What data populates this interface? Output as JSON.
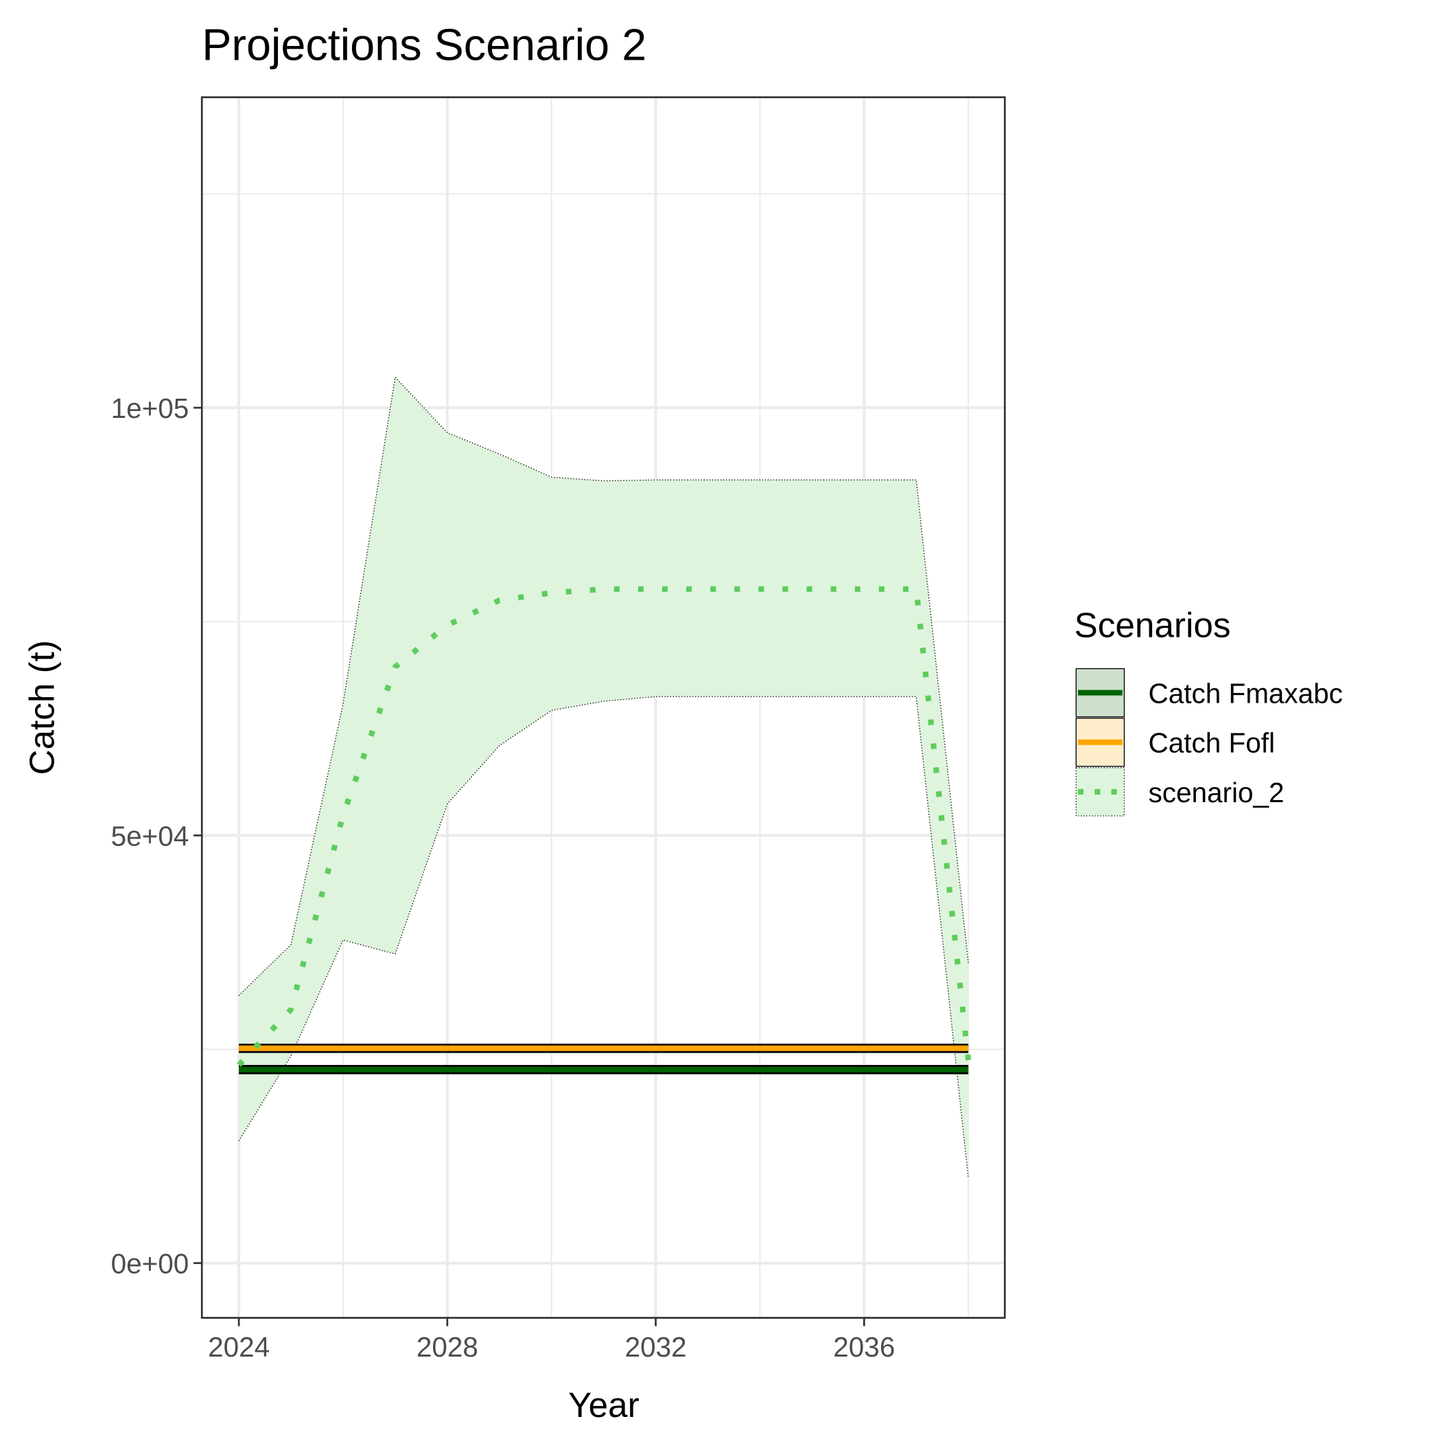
{
  "chart_data": {
    "type": "line",
    "title": "Projections Scenario 2",
    "x_label": "Year",
    "y_label": "Catch (t)",
    "legend_title": "Scenarios",
    "x": [
      2024,
      2025,
      2026,
      2027,
      2028,
      2029,
      2030,
      2031,
      2032,
      2033,
      2034,
      2035,
      2036,
      2037,
      2038
    ],
    "series": [
      {
        "name": "Catch Fmaxabc",
        "color": "#006400",
        "fill": "#cce0cc",
        "values": [
          22620,
          22620,
          22620,
          22620,
          22620,
          22620,
          22620,
          22620,
          22620,
          22620,
          22620,
          22620,
          22620,
          22620,
          22620
        ]
      },
      {
        "name": "Catch Fofl",
        "color": "#ffa500",
        "fill": "#ffedcc",
        "values": [
          25110,
          25110,
          25110,
          25110,
          25110,
          25110,
          25110,
          25110,
          25110,
          25110,
          25110,
          25110,
          25110,
          25110,
          25110
        ]
      },
      {
        "name": "scenario_2",
        "color": "#5dcc5d",
        "fill": "#dff4dc",
        "dashed": true,
        "values": [
          23160,
          29650,
          52380,
          69700,
          74570,
          77490,
          78360,
          78790,
          78790,
          78790,
          78790,
          78790,
          78790,
          78790,
          23700
        ],
        "upper": [
          31280,
          37230,
          65370,
          103570,
          97080,
          94590,
          91880,
          91450,
          91560,
          91560,
          91560,
          91560,
          91560,
          91560,
          35070
        ],
        "lower": [
          14290,
          24240,
          37770,
          36150,
          53680,
          60500,
          64610,
          65690,
          66230,
          66230,
          66230,
          66230,
          66230,
          66230,
          9960
        ]
      }
    ],
    "xlim": [
      2023.29,
      2038.7
    ],
    "ylim": [
      -6400,
      136300
    ],
    "xticks": [
      2024,
      2028,
      2032,
      2036
    ],
    "yticks": [
      {
        "value": 0,
        "label": "0e+00"
      },
      {
        "value": 50000,
        "label": "5e+04"
      },
      {
        "value": 100000,
        "label": "1e+05"
      }
    ],
    "x_minor_grid": [
      2026,
      2030,
      2034,
      2038
    ],
    "y_minor_grid": [
      25000,
      75000,
      125000
    ],
    "grid": true,
    "legend": "right"
  }
}
